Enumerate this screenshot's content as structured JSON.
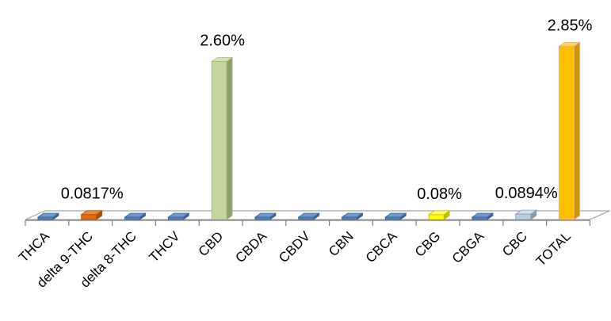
{
  "chart_data": {
    "type": "bar",
    "three_d": true,
    "title": "",
    "xlabel": "",
    "ylabel": "",
    "ylim": [
      0,
      3.0
    ],
    "grid": false,
    "legend": "none",
    "unit": "%",
    "categories": [
      "THCA",
      "delta 9-THC",
      "delta 8-THC",
      "THCV",
      "CBD",
      "CBDA",
      "CBDV",
      "CBN",
      "CBCA",
      "CBG",
      "CBGA",
      "CBC",
      "TOTAL"
    ],
    "values": [
      0,
      0.0817,
      0,
      0,
      2.6,
      0,
      0,
      0,
      0,
      0.08,
      0,
      0.0894,
      2.85
    ],
    "data_labels": [
      "",
      "0.0817%",
      "",
      "",
      "2.60%",
      "",
      "",
      "",
      "",
      "0.08%",
      "",
      "0.0894%",
      "2.85%"
    ],
    "colors": [
      "#4F81BD",
      "#E46C0A",
      "#4F81BD",
      "#4F81BD",
      "#C3D69B",
      "#4F81BD",
      "#4F81BD",
      "#4F81BD",
      "#4F81BD",
      "#FFFF00",
      "#4F81BD",
      "#B9CDE5",
      "#FFC000"
    ],
    "side_colors": [
      "#3A6496",
      "#A85208",
      "#3A6496",
      "#3A6496",
      "#8E9E6E",
      "#3A6496",
      "#3A6496",
      "#3A6496",
      "#3A6496",
      "#BFBF00",
      "#3A6496",
      "#8B9AB0",
      "#C99700"
    ],
    "top_colors": [
      "#7397CB",
      "#F08A3A",
      "#7397CB",
      "#7397CB",
      "#D6E4B5",
      "#7397CB",
      "#7397CB",
      "#7397CB",
      "#7397CB",
      "#FFFF66",
      "#7397CB",
      "#D3DFEE",
      "#FFD54D"
    ],
    "outline_colors": [
      "#3A6496",
      "#A85208",
      "#3A6496",
      "#3A6496",
      "#A6B97D",
      "#3A6496",
      "#3A6496",
      "#3A6496",
      "#3A6496",
      "#BFBF00",
      "#3A6496",
      "#8B9AB0",
      "#F4A0A0"
    ],
    "floor_color": "#FFFFFF",
    "floor_outline": "#A6A6A6"
  }
}
